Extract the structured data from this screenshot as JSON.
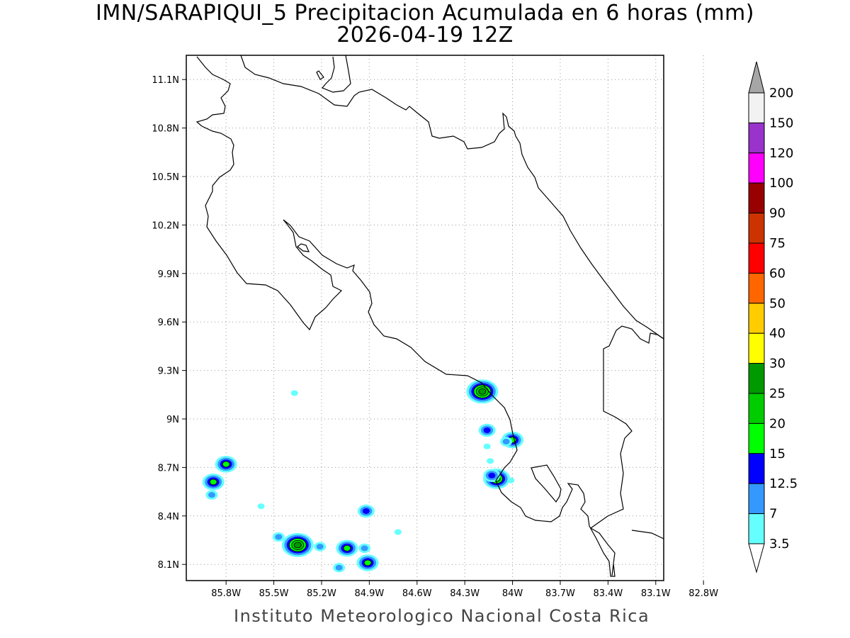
{
  "title": {
    "line1": "IMN/SARAPIQUI_5 Precipitacion Acumulada en 6 horas (mm)",
    "line2": "2026-04-19 12Z"
  },
  "footer": "Instituto Meteorologico Nacional Costa Rica",
  "map": {
    "lon_range": [
      -86.05,
      -83.05
    ],
    "lat_range": [
      8.0,
      11.25
    ],
    "y_ticks": [
      {
        "lat": 11.1,
        "label": "11.1N"
      },
      {
        "lat": 10.8,
        "label": "10.8N"
      },
      {
        "lat": 10.5,
        "label": "10.5N"
      },
      {
        "lat": 10.2,
        "label": "10.2N"
      },
      {
        "lat": 9.9,
        "label": "9.9N"
      },
      {
        "lat": 9.6,
        "label": "9.6N"
      },
      {
        "lat": 9.3,
        "label": "9.3N"
      },
      {
        "lat": 9.0,
        "label": "9N"
      },
      {
        "lat": 8.7,
        "label": "8.7N"
      },
      {
        "lat": 8.4,
        "label": "8.4N"
      },
      {
        "lat": 8.1,
        "label": "8.1N"
      }
    ],
    "x_ticks": [
      {
        "lon": -85.8,
        "label": "85.8W"
      },
      {
        "lon": -85.5,
        "label": "85.5W"
      },
      {
        "lon": -85.2,
        "label": "85.2W"
      },
      {
        "lon": -84.9,
        "label": "84.9W"
      },
      {
        "lon": -84.6,
        "label": "84.6W"
      },
      {
        "lon": -84.3,
        "label": "84.3W"
      },
      {
        "lon": -84.0,
        "label": "84W"
      },
      {
        "lon": -83.7,
        "label": "83.7W"
      },
      {
        "lon": -83.4,
        "label": "83.4W"
      },
      {
        "lon": -83.1,
        "label": "83.1W"
      },
      {
        "lon": -82.8,
        "label": "82.8W"
      }
    ],
    "precip_cells": [
      {
        "lon": -85.8,
        "lat": 8.72,
        "level": 3
      },
      {
        "lon": -85.88,
        "lat": 8.61,
        "level": 3
      },
      {
        "lon": -85.89,
        "lat": 8.53,
        "level": 1
      },
      {
        "lon": -85.37,
        "lat": 9.16,
        "level": 0
      },
      {
        "lon": -85.35,
        "lat": 8.22,
        "level": 5
      },
      {
        "lon": -85.47,
        "lat": 8.27,
        "level": 1
      },
      {
        "lon": -85.21,
        "lat": 8.21,
        "level": 1
      },
      {
        "lon": -85.04,
        "lat": 8.2,
        "level": 3
      },
      {
        "lon": -84.93,
        "lat": 8.2,
        "level": 1
      },
      {
        "lon": -84.92,
        "lat": 8.43,
        "level": 2
      },
      {
        "lon": -84.91,
        "lat": 8.11,
        "level": 3
      },
      {
        "lon": -85.09,
        "lat": 8.08,
        "level": 1
      },
      {
        "lon": -84.72,
        "lat": 8.3,
        "level": 0
      },
      {
        "lon": -85.58,
        "lat": 8.46,
        "level": 0
      },
      {
        "lon": -84.19,
        "lat": 9.17,
        "level": 5
      },
      {
        "lon": -84.16,
        "lat": 8.93,
        "level": 2
      },
      {
        "lon": -84.0,
        "lat": 8.87,
        "level": 3
      },
      {
        "lon": -84.04,
        "lat": 8.86,
        "level": 1
      },
      {
        "lon": -84.16,
        "lat": 8.83,
        "level": 0
      },
      {
        "lon": -84.14,
        "lat": 8.74,
        "level": 0
      },
      {
        "lon": -84.1,
        "lat": 8.63,
        "level": 4
      },
      {
        "lon": -84.13,
        "lat": 8.65,
        "level": 2
      },
      {
        "lon": -84.01,
        "lat": 8.62,
        "level": 0
      }
    ]
  },
  "colorbar": {
    "labels": [
      "3.5",
      "7",
      "12.5",
      "15",
      "20",
      "25",
      "30",
      "40",
      "50",
      "60",
      "75",
      "90",
      "100",
      "120",
      "150",
      "200"
    ],
    "colors": [
      "#66ffff",
      "#3399ff",
      "#0000ff",
      "#00ff00",
      "#00cc00",
      "#009900",
      "#ffff00",
      "#ffcc00",
      "#ff6600",
      "#ff0000",
      "#cc3300",
      "#990000",
      "#ff00ff",
      "#9933cc",
      "#f2f2f2"
    ],
    "over_color": "#a6a6a6",
    "under_color": "#ffffff"
  }
}
